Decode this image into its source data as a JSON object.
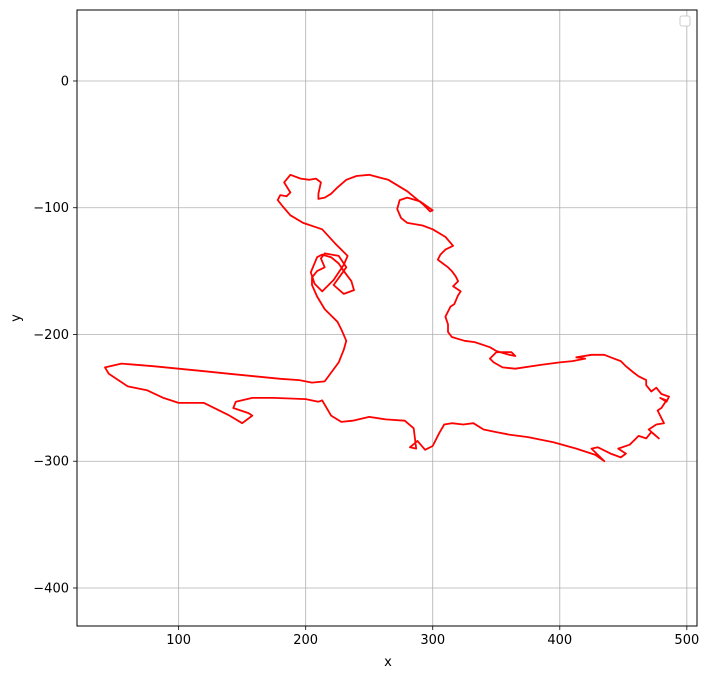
{
  "chart_data": {
    "type": "line",
    "title": "",
    "xlabel": "x",
    "ylabel": "y",
    "xlim": [
      20,
      508
    ],
    "ylim": [
      -430,
      56
    ],
    "xticks": [
      100,
      200,
      300,
      400,
      500
    ],
    "yticks": [
      0,
      -100,
      -200,
      -300,
      -400
    ],
    "xtick_labels": [
      "100",
      "200",
      "300",
      "400",
      "500"
    ],
    "ytick_labels": [
      "0",
      "−100",
      "−200",
      "−300",
      "−400"
    ],
    "grid": true,
    "legend": {
      "placement": "top-right",
      "entries": []
    },
    "series": [
      {
        "color": "#ff0000",
        "x": [
          435,
          425,
          430,
          440,
          448,
          452,
          446,
          455,
          462,
          468,
          472,
          478,
          470,
          476,
          482,
          477,
          480,
          484,
          479,
          484,
          486,
          480,
          476,
          472,
          468,
          468,
          462,
          458,
          452,
          448,
          440,
          435,
          425,
          413,
          420,
          410,
          400,
          385,
          365,
          355,
          348,
          345,
          350,
          362,
          365,
          360,
          350,
          345,
          333,
          325,
          315,
          312,
          312,
          310,
          314,
          317,
          320,
          322,
          316,
          320,
          318,
          315,
          312,
          308,
          304,
          306,
          310,
          316,
          310,
          300,
          292,
          280,
          275,
          272,
          274,
          280,
          290,
          300,
          298,
          292,
          280,
          265,
          250,
          240,
          232,
          225,
          220,
          215,
          210,
          210,
          212,
          208,
          203,
          196,
          188,
          183,
          188,
          185,
          180,
          178,
          182,
          188,
          198,
          213,
          223,
          233,
          230,
          222,
          213,
          207,
          204,
          209,
          213,
          220,
          226,
          230,
          236,
          238,
          230,
          222,
          227,
          232,
          226,
          215,
          212,
          215,
          209,
          205,
          205,
          209,
          215,
          220,
          225,
          228,
          232,
          230,
          226,
          215,
          205,
          195,
          180,
          160,
          140,
          120,
          100,
          80,
          55,
          42,
          45,
          60,
          75,
          88,
          100,
          120,
          140,
          150,
          158,
          155,
          143,
          145,
          158,
          175,
          200,
          210,
          213,
          220,
          228,
          237,
          250,
          263,
          278,
          285,
          287,
          282,
          288,
          294,
          300,
          305,
          309,
          315,
          324,
          332,
          340,
          350,
          360,
          375,
          395,
          413,
          428,
          435
        ],
        "y": [
          -300,
          -290,
          -289,
          -294,
          -297,
          -294,
          -290,
          -287,
          -280,
          -282,
          -277,
          -282,
          -275,
          -271,
          -270,
          -260,
          -258,
          -252,
          -250,
          -253,
          -249,
          -247,
          -242,
          -245,
          -240,
          -236,
          -233,
          -230,
          -225,
          -221,
          -218,
          -216,
          -216,
          -218,
          -219,
          -221,
          -222,
          -224,
          -227,
          -226,
          -222,
          -219,
          -214,
          -214,
          -217,
          -216,
          -213,
          -210,
          -206,
          -205,
          -202,
          -198,
          -192,
          -186,
          -178,
          -176,
          -169,
          -166,
          -162,
          -158,
          -154,
          -150,
          -147,
          -144,
          -141,
          -137,
          -133,
          -130,
          -123,
          -117,
          -114,
          -112,
          -108,
          -101,
          -94,
          -92,
          -95,
          -102,
          -103,
          -97,
          -87,
          -78,
          -74,
          -75,
          -78,
          -84,
          -89,
          -92,
          -93,
          -89,
          -80,
          -77,
          -78,
          -77,
          -74,
          -80,
          -88,
          -91,
          -90,
          -94,
          -99,
          -106,
          -112,
          -117,
          -128,
          -138,
          -145,
          -157,
          -166,
          -160,
          -151,
          -139,
          -137,
          -139,
          -144,
          -150,
          -158,
          -165,
          -168,
          -161,
          -154,
          -147,
          -138,
          -136,
          -140,
          -147,
          -150,
          -155,
          -161,
          -170,
          -180,
          -185,
          -190,
          -196,
          -205,
          -212,
          -222,
          -237,
          -238,
          -236,
          -235,
          -233,
          -231,
          -229,
          -227,
          -225,
          -223,
          -226,
          -231,
          -241,
          -244,
          -250,
          -254,
          -254,
          -264,
          -270,
          -264,
          -262,
          -258,
          -253,
          -250,
          -250,
          -251,
          -253,
          -252,
          -264,
          -269,
          -268,
          -265,
          -267,
          -268,
          -274,
          -290,
          -289,
          -284,
          -291,
          -288,
          -278,
          -271,
          -270,
          -271,
          -270,
          -275,
          -277,
          -279,
          -281,
          -285,
          -290,
          -295,
          -300
        ]
      }
    ]
  }
}
